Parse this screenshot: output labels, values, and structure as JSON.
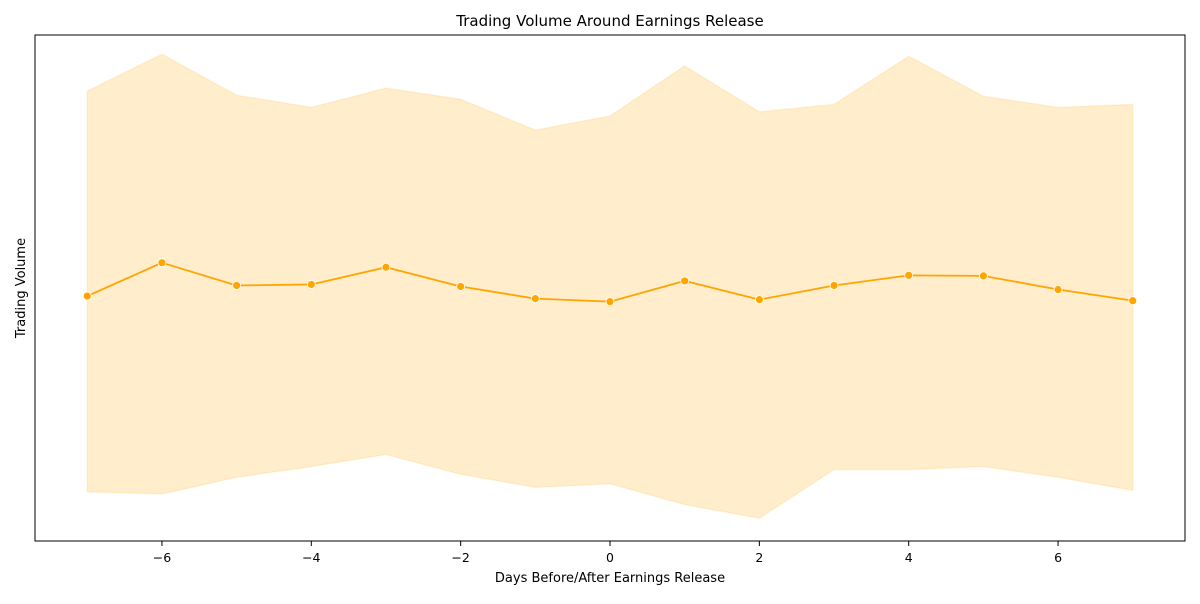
{
  "chart_data": {
    "type": "line",
    "title": "Trading Volume Around Earnings Release",
    "xlabel": "Days Before/After Earnings Release",
    "ylabel": "Trading Volume",
    "x": [
      -7,
      -6,
      -5,
      -4,
      -3,
      -2,
      -1,
      0,
      1,
      2,
      3,
      4,
      5,
      6,
      7
    ],
    "xticks": [
      -6,
      -4,
      -2,
      0,
      2,
      4,
      6
    ],
    "xtick_labels": [
      "−6",
      "−4",
      "−2",
      "0",
      "2",
      "4",
      "6"
    ],
    "xlim": [
      -7.7,
      7.7
    ],
    "ylim": [
      0,
      100
    ],
    "yticks_shown": false,
    "grid": false,
    "legend": "none",
    "series": [
      {
        "values": [
          48.4,
          55.0,
          50.5,
          50.7,
          54.1,
          50.3,
          47.9,
          47.3,
          51.4,
          47.7,
          50.5,
          52.5,
          52.4,
          49.7,
          47.5
        ],
        "band_lower": [
          9.7,
          9.3,
          12.6,
          14.7,
          17.1,
          13.2,
          10.6,
          11.3,
          7.2,
          4.5,
          14.1,
          14.1,
          14.7,
          12.6,
          10.0
        ],
        "band_upper": [
          88.9,
          96.2,
          88.1,
          85.7,
          89.5,
          87.3,
          81.2,
          84.0,
          93.9,
          84.8,
          86.3,
          95.8,
          87.9,
          85.7,
          86.3
        ]
      }
    ],
    "colors": {
      "line": "#ffa500",
      "band": "#ffa500",
      "band_opacity": 0.2,
      "axes": "#000000"
    }
  }
}
